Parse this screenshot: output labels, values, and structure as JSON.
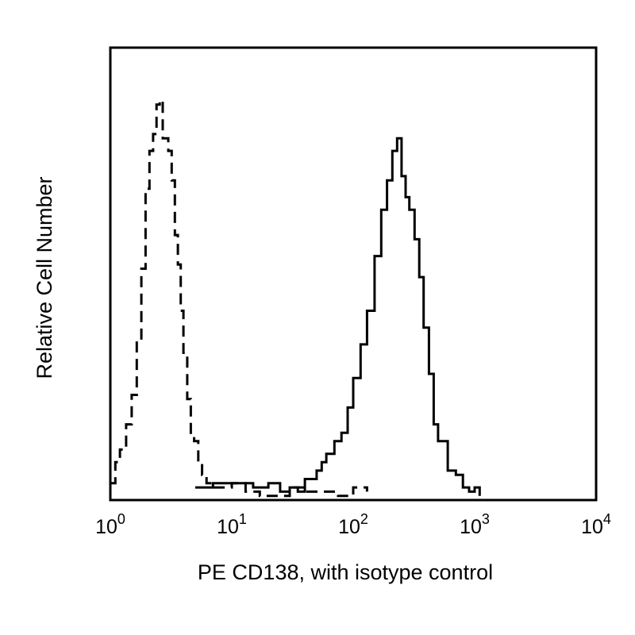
{
  "chart_data": {
    "type": "line",
    "title": "",
    "xlabel": "PE CD138, with isotype control",
    "ylabel": "Relative Cell Number",
    "x_scale": "log",
    "xlim": [
      1,
      10000
    ],
    "ylim": [
      0,
      1
    ],
    "grid": false,
    "legend": "none",
    "x_ticks": [
      {
        "base": "10",
        "exp": "0",
        "value": 1
      },
      {
        "base": "10",
        "exp": "1",
        "value": 10
      },
      {
        "base": "10",
        "exp": "2",
        "value": 100
      },
      {
        "base": "10",
        "exp": "3",
        "value": 1000
      },
      {
        "base": "10",
        "exp": "4",
        "value": 10000
      }
    ],
    "series": [
      {
        "style": "dashed",
        "color": "#000000",
        "x": [
          1.0,
          1.1,
          1.2,
          1.35,
          1.5,
          1.65,
          1.8,
          1.95,
          2.1,
          2.25,
          2.4,
          2.55,
          2.7,
          2.85,
          3.0,
          3.2,
          3.4,
          3.6,
          3.8,
          4.0,
          4.3,
          4.6,
          4.9,
          5.3,
          5.7,
          6.2,
          7.0,
          8.0,
          10.0,
          13.0,
          17.0,
          22.0,
          30.0,
          40.0,
          55.0,
          75.0,
          100.0,
          130.0
        ],
        "y": [
          0.04,
          0.09,
          0.12,
          0.18,
          0.25,
          0.38,
          0.55,
          0.74,
          0.83,
          0.87,
          0.94,
          0.95,
          0.86,
          0.86,
          0.83,
          0.76,
          0.63,
          0.56,
          0.45,
          0.35,
          0.24,
          0.15,
          0.14,
          0.09,
          0.06,
          0.04,
          0.03,
          0.03,
          0.04,
          0.02,
          0.01,
          0.01,
          0.03,
          0.02,
          0.02,
          0.01,
          0.03,
          0.02
        ]
      },
      {
        "style": "solid",
        "color": "#000000",
        "x": [
          5.0,
          7.0,
          10.0,
          15.0,
          20.0,
          25.0,
          30.0,
          35.0,
          40.0,
          45.0,
          50.0,
          55.0,
          60.0,
          70.0,
          80.0,
          90.0,
          100.0,
          115.0,
          130.0,
          150.0,
          170.0,
          190.0,
          210.0,
          230.0,
          250.0,
          270.0,
          290.0,
          320.0,
          350.0,
          380.0,
          420.0,
          460.0,
          500.0,
          600.0,
          700.0,
          800.0,
          900.0,
          1000.0,
          1100.0
        ],
        "y": [
          0.03,
          0.04,
          0.04,
          0.03,
          0.04,
          0.02,
          0.03,
          0.02,
          0.05,
          0.05,
          0.07,
          0.09,
          0.11,
          0.14,
          0.16,
          0.22,
          0.29,
          0.37,
          0.45,
          0.58,
          0.69,
          0.76,
          0.83,
          0.86,
          0.77,
          0.72,
          0.69,
          0.62,
          0.53,
          0.41,
          0.3,
          0.18,
          0.14,
          0.07,
          0.06,
          0.03,
          0.02,
          0.03,
          0.01
        ]
      }
    ]
  }
}
